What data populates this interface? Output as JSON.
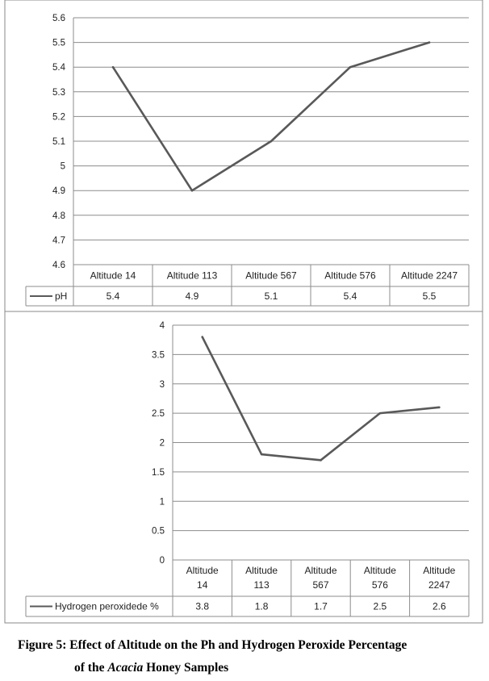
{
  "chart_data": [
    {
      "type": "line",
      "categories": [
        "Altitude 14",
        "Altitude 113",
        "Altitude 567",
        "Altitude 576",
        "Altitude 2247"
      ],
      "series": [
        {
          "name": "pH",
          "values": [
            5.4,
            4.9,
            5.1,
            5.4,
            5.5
          ],
          "color": "#595959"
        }
      ],
      "ylim": [
        4.6,
        5.6
      ],
      "yticks": [
        "5.6",
        "5.5",
        "5.4",
        "5.3",
        "5.2",
        "5.1",
        "5",
        "4.9",
        "4.8",
        "4.7",
        "4.6"
      ],
      "table_values": [
        "5.4",
        "4.9",
        "5.1",
        "5.4",
        "5.5"
      ],
      "grid": true,
      "legend": "data-table"
    },
    {
      "type": "line",
      "categories": [
        "Altitude 14",
        "Altitude 113",
        "Altitude 567",
        "Altitude 576",
        "Altitude 2247"
      ],
      "series": [
        {
          "name": "Hydrogen peroxidede %",
          "values": [
            3.8,
            1.8,
            1.7,
            2.5,
            2.6
          ],
          "color": "#595959"
        }
      ],
      "ylim": [
        0,
        4
      ],
      "yticks": [
        "4",
        "3.5",
        "3",
        "2.5",
        "2",
        "1.5",
        "1",
        "0.5",
        "0"
      ],
      "table_values": [
        "3.8",
        "1.8",
        "1.7",
        "2.5",
        "2.6"
      ],
      "grid": true,
      "legend": "data-table"
    }
  ],
  "caption": {
    "line1": "Figure 5: Effect of Altitude on the Ph and Hydrogen Peroxide Percentage",
    "line2_prefix": "of the ",
    "line2_italic": "Acacia",
    "line2_suffix": " Honey Samples"
  }
}
